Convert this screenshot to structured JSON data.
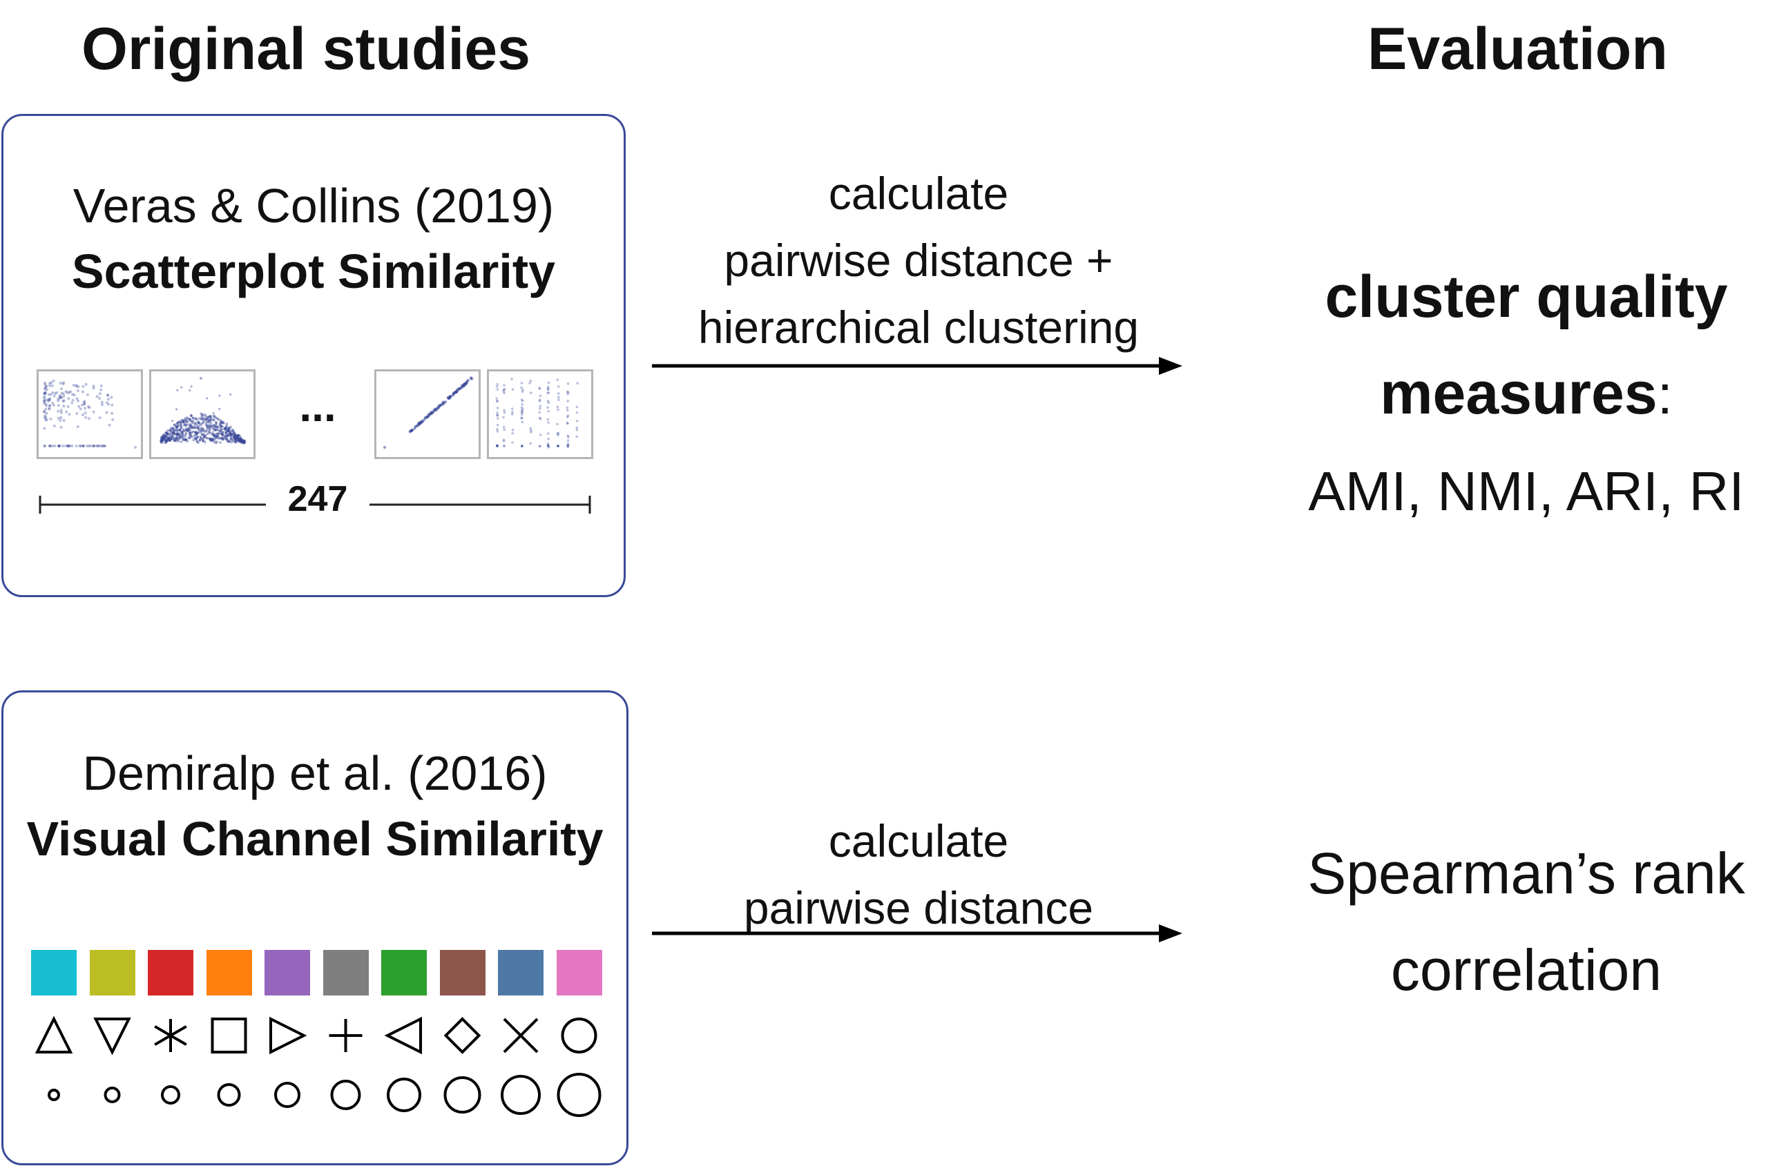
{
  "headers": {
    "left": "Original studies",
    "right": "Evaluation"
  },
  "study1": {
    "citation": "Veras & Collins (2019)",
    "title": "Scatterplot Similarity",
    "ellipsis": "...",
    "count": "247",
    "accent": "#3a4a9a"
  },
  "study2": {
    "citation": "Demiralp et al. (2016)",
    "title": "Visual Channel Similarity",
    "colors": [
      "#17becf",
      "#bcbd22",
      "#d62728",
      "#ff7f0e",
      "#9467bd",
      "#7f7f7f",
      "#2ca02c",
      "#8c564b",
      "#4e79a7",
      "#e377c2"
    ],
    "shape_icons": [
      "triangle-up-icon",
      "triangle-down-icon",
      "asterisk-icon",
      "square-icon",
      "triangle-right-icon",
      "plus-icon",
      "triangle-left-icon",
      "diamond-icon",
      "cross-icon",
      "circle-icon"
    ],
    "size_icons": [
      "circle-size-1-icon",
      "circle-size-2-icon",
      "circle-size-3-icon",
      "circle-size-4-icon",
      "circle-size-5-icon",
      "circle-size-6-icon",
      "circle-size-7-icon",
      "circle-size-8-icon",
      "circle-size-9-icon",
      "circle-size-10-icon"
    ]
  },
  "arrow1": {
    "lines": [
      "calculate",
      "pairwise distance +",
      "hierarchical clustering"
    ]
  },
  "arrow2": {
    "lines": [
      "calculate",
      "pairwise distance"
    ]
  },
  "eval1": {
    "line1": "cluster quality",
    "line2_bold": "measures",
    "line2_colon": ":",
    "metrics": "AMI, NMI, ARI, RI"
  },
  "eval2": {
    "lines": [
      "Spearman’s rank",
      "correlation"
    ]
  }
}
